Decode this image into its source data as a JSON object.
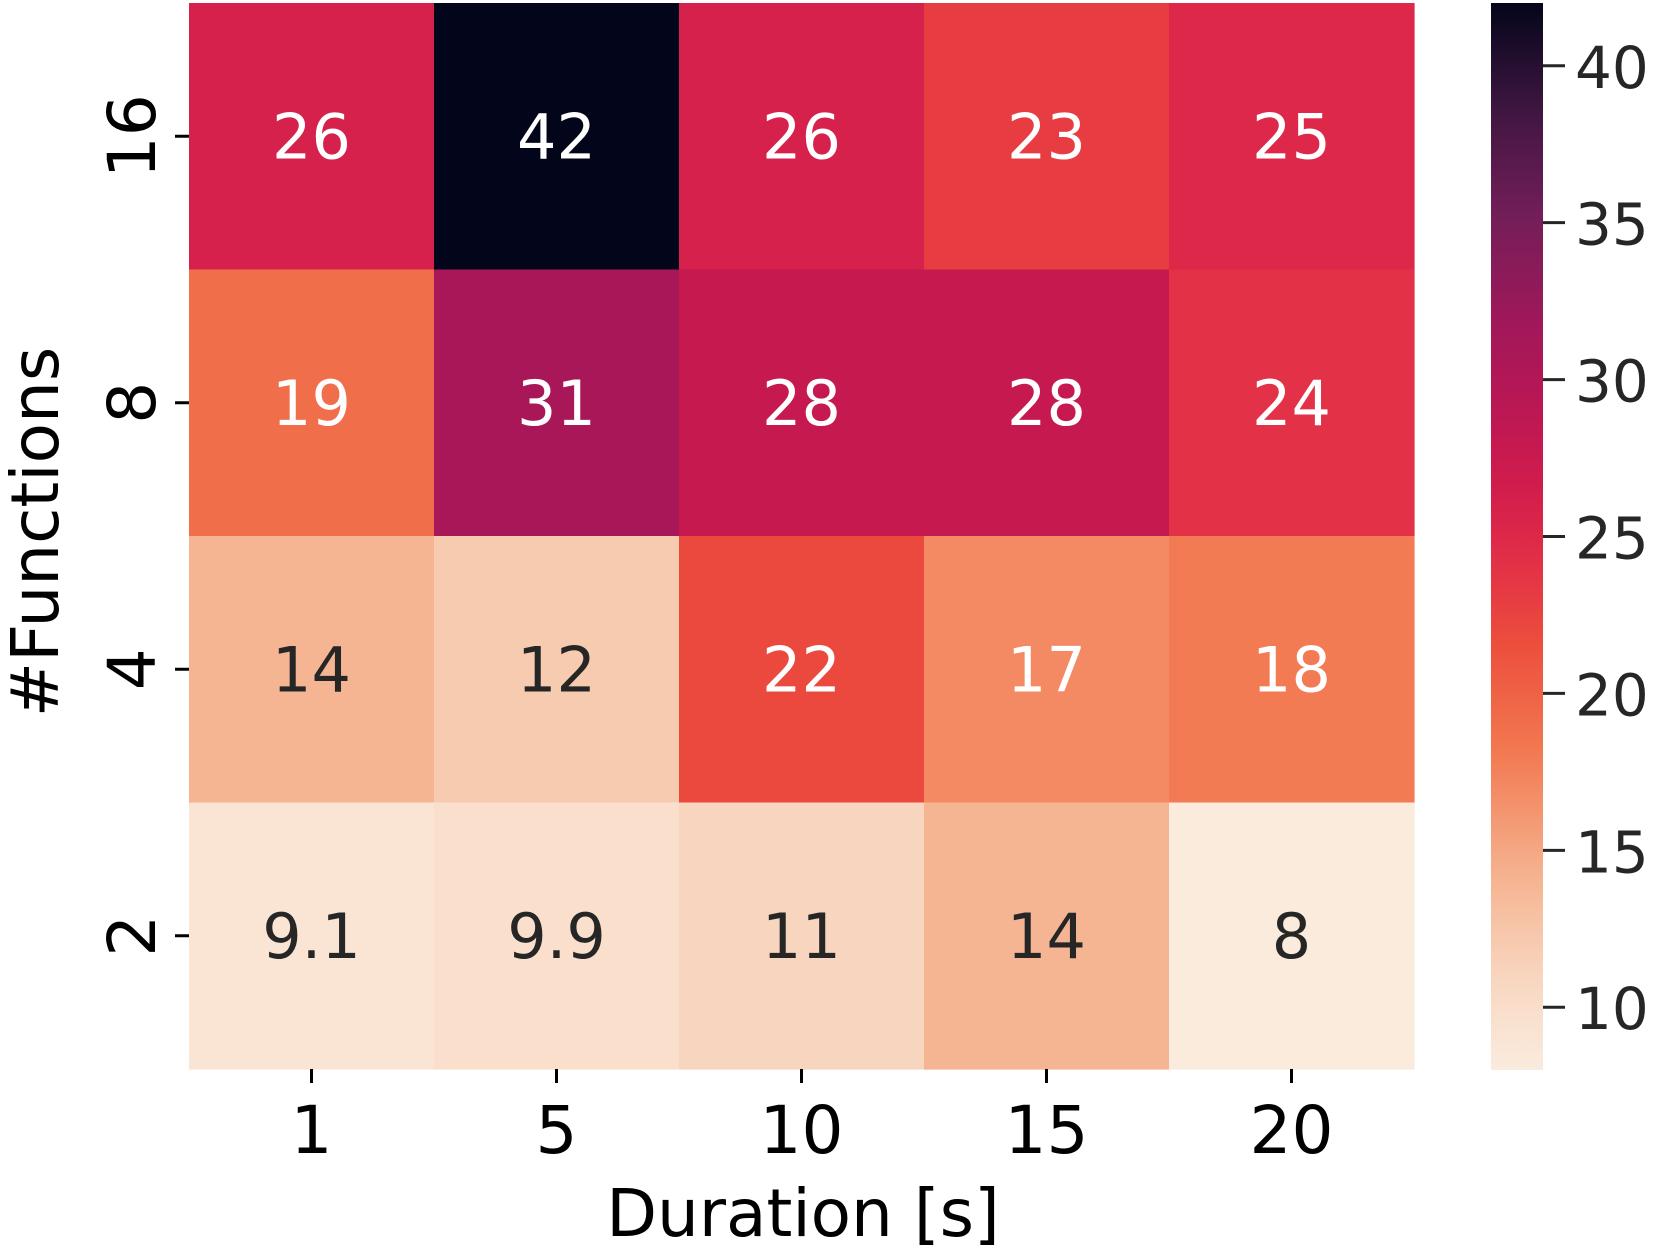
{
  "chart_data": {
    "type": "heatmap",
    "xlabel": "Duration [s]",
    "ylabel": "#Functions",
    "x_categories": [
      "1",
      "5",
      "10",
      "15",
      "20"
    ],
    "y_categories": [
      "16",
      "8",
      "4",
      "2"
    ],
    "values": [
      [
        26,
        42,
        26,
        23,
        25
      ],
      [
        19,
        31,
        28,
        28,
        24
      ],
      [
        14,
        12,
        22,
        17,
        18
      ],
      [
        9.1,
        9.9,
        11,
        14,
        8
      ]
    ],
    "labels": [
      [
        "26",
        "42",
        "26",
        "23",
        "25"
      ],
      [
        "19",
        "31",
        "28",
        "28",
        "24"
      ],
      [
        "14",
        "12",
        "22",
        "17",
        "18"
      ],
      [
        "9.1",
        "9.9",
        "11",
        "14",
        "8"
      ]
    ],
    "colorbar": {
      "min": 8,
      "max": 42,
      "ticks": [
        "10",
        "15",
        "20",
        "25",
        "30",
        "35",
        "40"
      ],
      "colormap": "rocket_r"
    },
    "grid": false
  }
}
